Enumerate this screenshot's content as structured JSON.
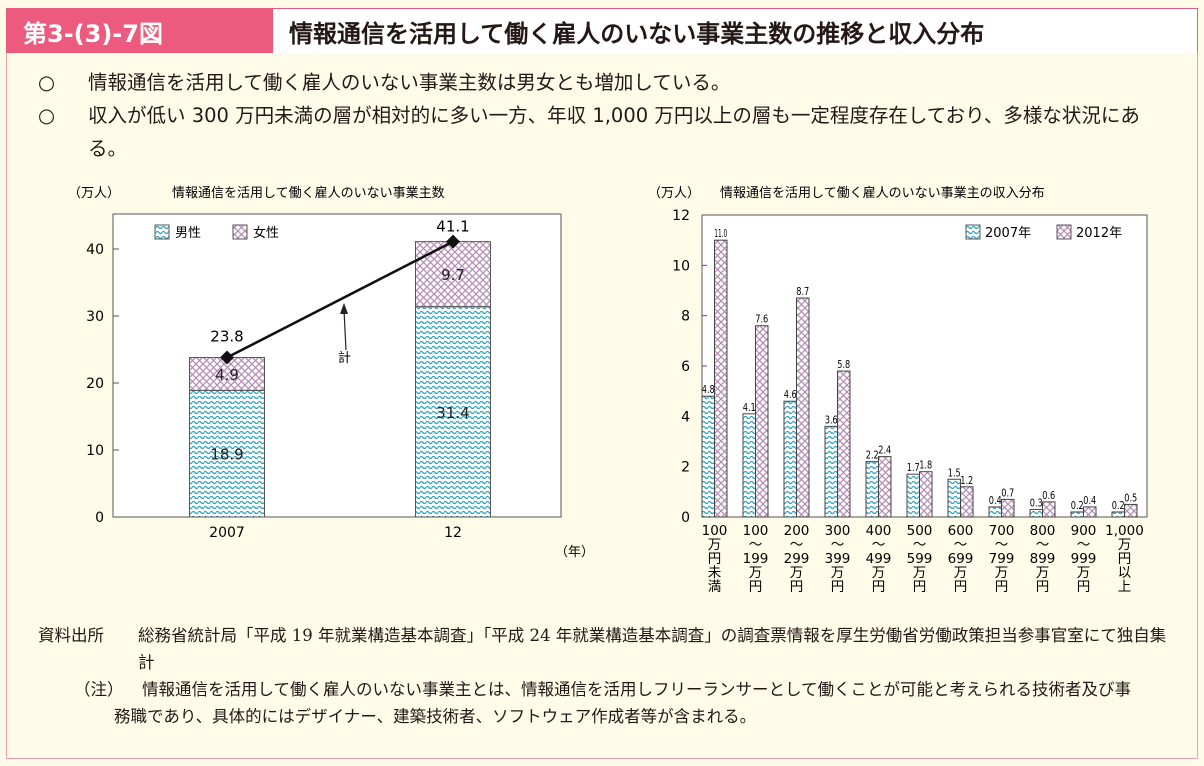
{
  "header": {
    "figure_number": "第3-(3)-7図",
    "title": "情報通信を活用して働く雇人のいない事業主数の推移と収入分布"
  },
  "points": [
    {
      "bullet": "○",
      "text": "情報通信を活用して働く雇人のいない事業主数は男女とも増加している。"
    },
    {
      "bullet": "○",
      "text": "収入が低い 300 万円未満の層が相対的に多い一方、年収 1,000 万円以上の層も一定程度存在しており、多様な状況にある。"
    }
  ],
  "colors": {
    "header": "#ec5a7d",
    "male_2007": "#2aa5c0",
    "female_2012": "#b48ab4",
    "background": "#fffbe9"
  },
  "chart_data": [
    {
      "type": "bar",
      "stacked": true,
      "title": "情報通信を活用して働く雇人のいない事業主数",
      "ylabel": "（万人）",
      "xlabel": "（年）",
      "categories": [
        "2007",
        "12"
      ],
      "ylim": [
        0,
        45
      ],
      "yticks": [
        0,
        10,
        20,
        30,
        40
      ],
      "series": [
        {
          "name": "男性",
          "values": [
            18.9,
            31.4
          ],
          "pattern": "wave"
        },
        {
          "name": "女性",
          "values": [
            4.9,
            9.7
          ],
          "pattern": "crosshatch"
        }
      ],
      "total": {
        "name": "計",
        "values": [
          23.8,
          41.1
        ],
        "type": "line"
      },
      "legend": "top-left"
    },
    {
      "type": "bar",
      "title": "情報通信を活用して働く雇人のいない事業主の収入分布",
      "ylabel": "（万人）",
      "categories": [
        "100\n万\n円\n未\n満",
        "100\n～\n199\n万\n円",
        "200\n～\n299\n万\n円",
        "300\n～\n399\n万\n円",
        "400\n～\n499\n万\n円",
        "500\n～\n599\n万\n円",
        "600\n～\n699\n万\n円",
        "700\n～\n799\n万\n円",
        "800\n～\n899\n万\n円",
        "900\n～\n999\n万\n円",
        "1,000\n万\n円\n以\n上"
      ],
      "ylim": [
        0,
        12
      ],
      "yticks": [
        0,
        2,
        4,
        6,
        8,
        10,
        12
      ],
      "series": [
        {
          "name": "2007年",
          "values": [
            4.8,
            4.1,
            4.6,
            3.6,
            2.2,
            1.7,
            1.5,
            0.4,
            0.3,
            0.2,
            0.2
          ],
          "pattern": "wave"
        },
        {
          "name": "2012年",
          "values": [
            11.0,
            7.6,
            8.7,
            5.8,
            2.4,
            1.8,
            1.2,
            0.7,
            0.6,
            0.4,
            0.5
          ],
          "pattern": "crosshatch"
        }
      ],
      "legend": "top-right"
    }
  ],
  "source": {
    "label": "資料出所",
    "text": "総務省統計局「平成 19 年就業構造基本調査」「平成 24 年就業構造基本調査」の調査票情報を厚生労働省労働政策担当参事官室にて独自集計"
  },
  "note": {
    "label": "（注）",
    "text": "情報通信を活用して働く雇人のいない事業主とは、情報通信を活用しフリーランサーとして働くことが可能と考えられる技術者及び事務職であり、具体的にはデザイナー、建築技術者、ソフトウェア作成者等が含まれる。"
  }
}
